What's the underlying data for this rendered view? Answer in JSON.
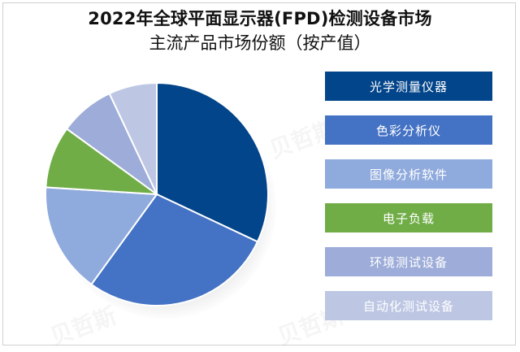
{
  "title": {
    "line1": "2022年全球平面显示器(FPD)检测设备市场",
    "line2": "主流产品市场份额（按产值）"
  },
  "legend": {
    "items": [
      {
        "label": "光学测量仪器",
        "color": "#03458A"
      },
      {
        "label": "色彩分析仪",
        "color": "#4472C4"
      },
      {
        "label": "图像分析软件",
        "color": "#8FAADC"
      },
      {
        "label": "电子负载",
        "color": "#70AD47"
      },
      {
        "label": "环境测试设备",
        "color": "#9DACD8"
      },
      {
        "label": "自动化测试设备",
        "color": "#BDC7E4"
      }
    ]
  },
  "watermark": {
    "text": "贝哲斯"
  },
  "chart_data": {
    "type": "pie",
    "title": "2022年全球平面显示器(FPD)检测设备市场主流产品市场份额（按产值）",
    "categories": [
      "光学测量仪器",
      "色彩分析仪",
      "图像分析软件",
      "电子负载",
      "环境测试设备",
      "自动化测试设备"
    ],
    "values": [
      32,
      28,
      16,
      9,
      8,
      7
    ],
    "unit": "%",
    "colors": [
      "#03458A",
      "#4472C4",
      "#8FAADC",
      "#70AD47",
      "#9DACD8",
      "#BDC7E4"
    ],
    "start_angle_deg": 0,
    "direction": "clockwise",
    "legend_position": "right",
    "data_labels": false
  }
}
